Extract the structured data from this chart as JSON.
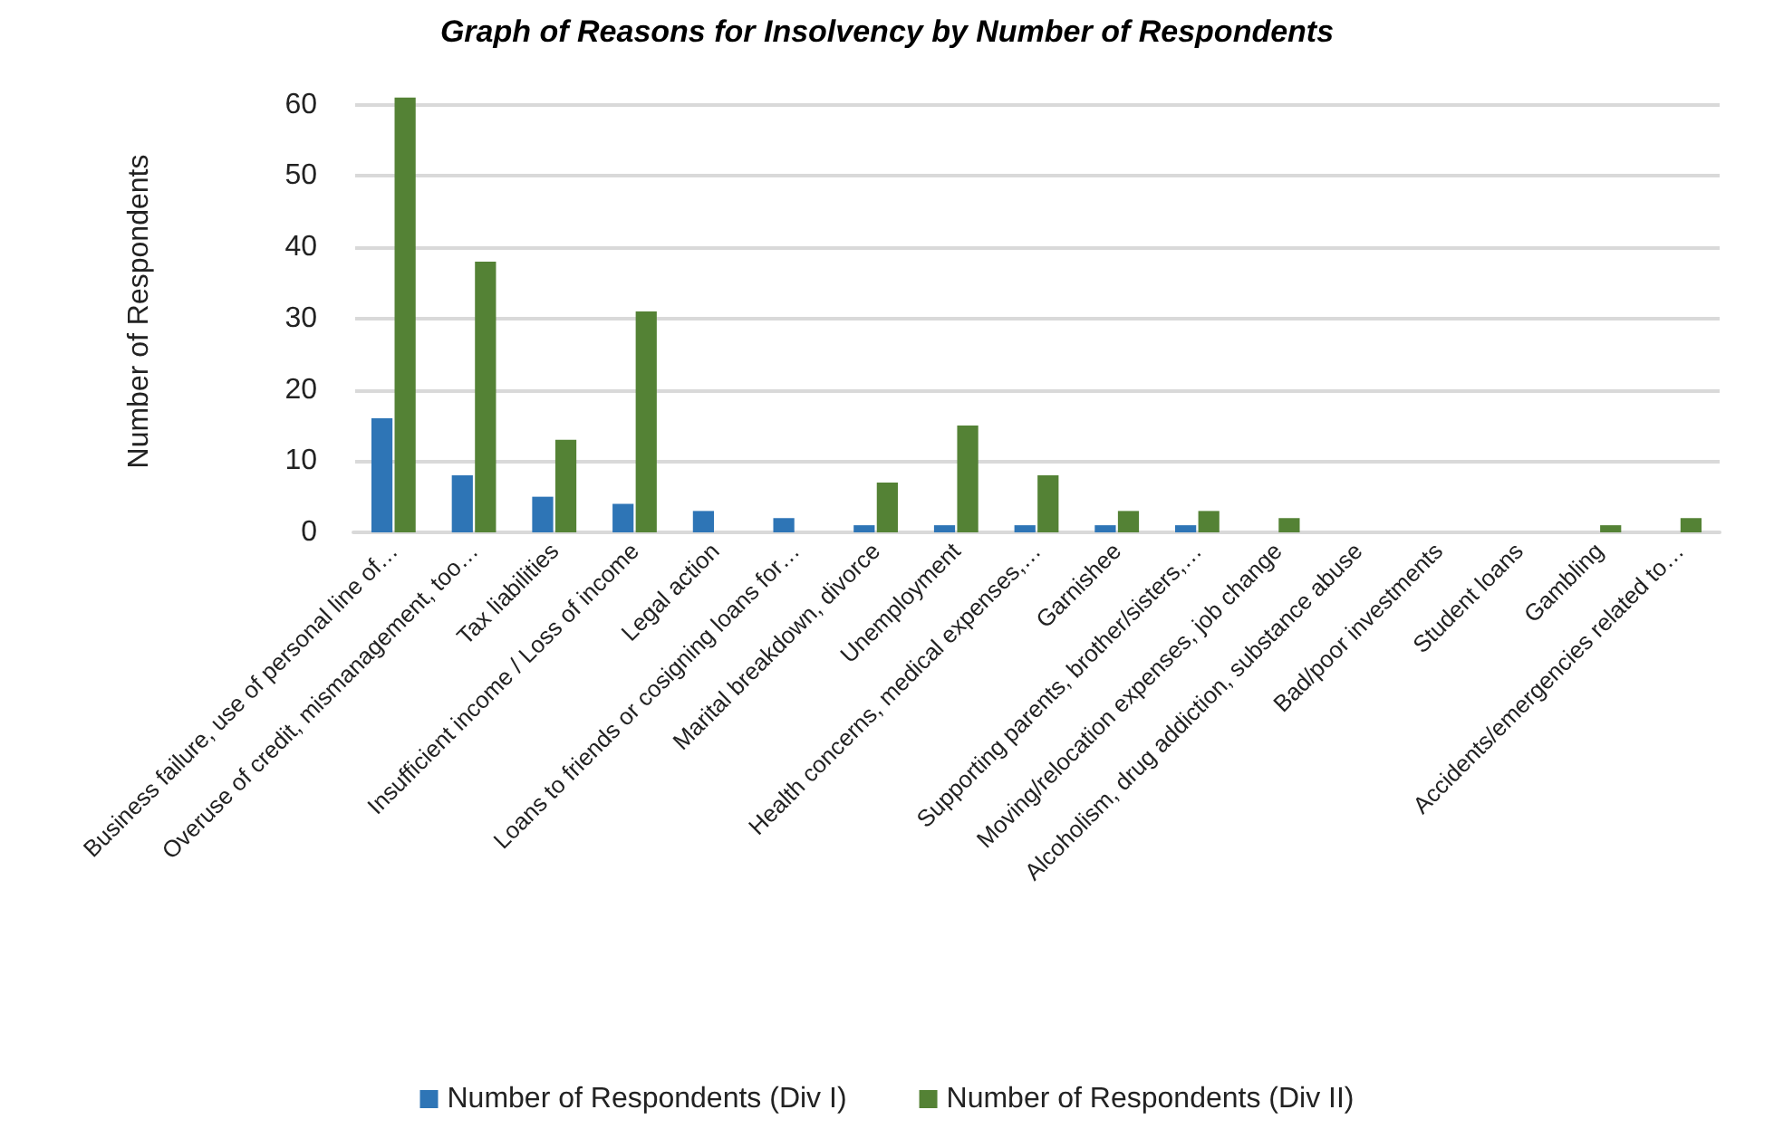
{
  "chart_data": {
    "type": "bar",
    "title": "Graph of Reasons for Insolvency by Number of Respondents",
    "ylabel": "Number of Respondents",
    "categories": [
      "Business failure, use of personal line of…",
      "Overuse of credit, mismanagement, too…",
      "Tax liabilities",
      "Insufficient income / Loss of income",
      "Legal action",
      "Loans to friends or cosigning loans for…",
      "Marital breakdown, divorce",
      "Unemployment",
      "Health concerns, medical expenses,…",
      "Garnishee",
      "Supporting parents, brother/sisters,…",
      "Moving/relocation expenses, job change",
      "Alcoholism, drug addiction, substance abuse",
      "Bad/poor investments",
      "Student loans",
      "Gambling",
      "Accidents/emergencies related to…"
    ],
    "series": [
      {
        "name": "Number of Respondents (Div I)",
        "color": "#2e75b6",
        "values": [
          16,
          8,
          5,
          4,
          3,
          2,
          1,
          1,
          1,
          1,
          1,
          0,
          0,
          0,
          0,
          0,
          0
        ]
      },
      {
        "name": "Number of Respondents (Div II)",
        "color": "#548235",
        "values": [
          61,
          38,
          13,
          31,
          0,
          0,
          7,
          15,
          8,
          3,
          3,
          2,
          0,
          0,
          0,
          1,
          2
        ]
      }
    ],
    "ylim": [
      0,
      62
    ],
    "yticks": [
      0,
      10,
      20,
      30,
      40,
      50,
      60
    ],
    "grid": "y",
    "legend": "bottom"
  }
}
